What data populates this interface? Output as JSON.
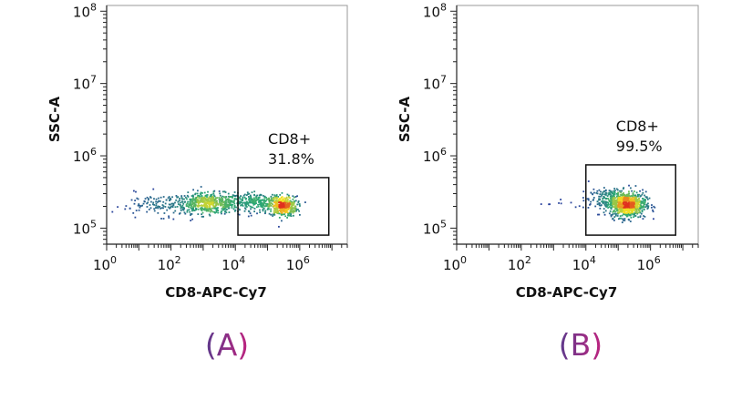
{
  "chart_data": [
    {
      "panel_label": "(A)",
      "type": "scatter",
      "subtype": "flow-cytometry-density-dot-plot",
      "xlabel": "CD8-APC-Cy7",
      "ylabel": "SSC-A",
      "x_scale": "log",
      "y_scale": "log",
      "xlim": [
        1,
        30000000
      ],
      "ylim": [
        60000,
        120000000
      ],
      "x_ticks": [
        {
          "value": 1,
          "base": "10",
          "exp": "0"
        },
        {
          "value": 100,
          "base": "10",
          "exp": "2"
        },
        {
          "value": 10000,
          "base": "10",
          "exp": "4"
        },
        {
          "value": 1000000,
          "base": "10",
          "exp": "6"
        }
      ],
      "y_ticks": [
        {
          "value": 100000,
          "base": "10",
          "exp": "5"
        },
        {
          "value": 1000000,
          "base": "10",
          "exp": "6"
        },
        {
          "value": 10000000,
          "base": "10",
          "exp": "7"
        },
        {
          "value": 100000000,
          "base": "10",
          "exp": "8"
        }
      ],
      "gate": {
        "name": "CD8+",
        "percent": "31.8%",
        "x_range": [
          12000,
          8000000
        ],
        "y_range": [
          80000,
          500000
        ]
      },
      "populations": [
        {
          "center_x": 1500,
          "center_y": 220000,
          "spread_log_x": 0.55,
          "spread_log_y": 0.07,
          "count": 520
        },
        {
          "center_x": 300000,
          "center_y": 200000,
          "spread_log_x": 0.22,
          "spread_log_y": 0.07,
          "count": 380
        },
        {
          "center_x": 50000,
          "center_y": 230000,
          "spread_log_x": 0.45,
          "spread_log_y": 0.06,
          "count": 240
        },
        {
          "center_x": 60,
          "center_y": 210000,
          "spread_log_x": 0.8,
          "spread_log_y": 0.08,
          "count": 130
        }
      ],
      "grid": false,
      "legend": "none"
    },
    {
      "panel_label": "(B)",
      "type": "scatter",
      "subtype": "flow-cytometry-density-dot-plot",
      "xlabel": "CD8-APC-Cy7",
      "ylabel": "SSC-A",
      "x_scale": "log",
      "y_scale": "log",
      "xlim": [
        1,
        30000000
      ],
      "ylim": [
        60000,
        120000000
      ],
      "x_ticks": [
        {
          "value": 1,
          "base": "10",
          "exp": "0"
        },
        {
          "value": 100,
          "base": "10",
          "exp": "2"
        },
        {
          "value": 10000,
          "base": "10",
          "exp": "4"
        },
        {
          "value": 1000000,
          "base": "10",
          "exp": "6"
        }
      ],
      "y_ticks": [
        {
          "value": 100000,
          "base": "10",
          "exp": "5"
        },
        {
          "value": 1000000,
          "base": "10",
          "exp": "6"
        },
        {
          "value": 10000000,
          "base": "10",
          "exp": "7"
        },
        {
          "value": 100000000,
          "base": "10",
          "exp": "8"
        }
      ],
      "gate": {
        "name": "CD8+",
        "percent": "99.5%",
        "x_range": [
          10000,
          6000000
        ],
        "y_range": [
          80000,
          750000
        ]
      },
      "populations": [
        {
          "center_x": 200000,
          "center_y": 210000,
          "spread_log_x": 0.28,
          "spread_log_y": 0.09,
          "count": 700
        },
        {
          "center_x": 60000,
          "center_y": 250000,
          "spread_log_x": 0.35,
          "spread_log_y": 0.07,
          "count": 200
        },
        {
          "center_x": 3000,
          "center_y": 220000,
          "spread_log_x": 0.5,
          "spread_log_y": 0.05,
          "count": 12
        }
      ],
      "grid": false,
      "legend": "none"
    }
  ],
  "colors": {
    "axis": "#222222",
    "gate": "#111111",
    "density_low": "#2b3f9e",
    "density_mid": "#2aa774",
    "density_high": "#f2e022",
    "density_peak": "#e0301e",
    "panel_label_start": "#5b3a8c",
    "panel_label_end": "#c0237f"
  }
}
